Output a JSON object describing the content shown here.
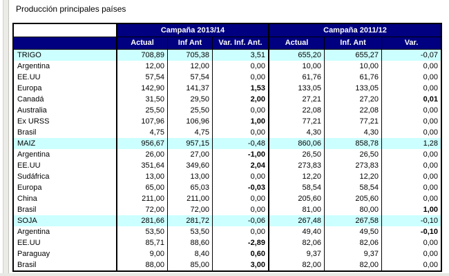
{
  "page": {
    "title": "Producción principales países"
  },
  "colors": {
    "header_bg": "#000080",
    "header_text": "#FFFFFF",
    "commodity_row_bg": "#CCFFFF",
    "table_border": "#000000"
  },
  "table": {
    "corner_label": "",
    "groups": [
      {
        "label": "Campaña 2013/14",
        "columns": [
          "Actual",
          "Inf Ant",
          "Var. Inf. Ant."
        ]
      },
      {
        "label": "Campaña 2011/12",
        "columns": [
          "Actual",
          "Inf. Ant",
          "Var."
        ]
      }
    ],
    "rows": [
      {
        "name": "TRIGO",
        "type": "commodity",
        "values": [
          "708,89",
          "705,38",
          "3,51",
          "655,20",
          "655,27",
          "-0,07"
        ],
        "bold": [
          false,
          false,
          false,
          false,
          false,
          false
        ]
      },
      {
        "name": "Argentina",
        "type": "country",
        "values": [
          "12,00",
          "12,00",
          "0,00",
          "10,00",
          "10,00",
          "0,00"
        ],
        "bold": [
          false,
          false,
          false,
          false,
          false,
          false
        ]
      },
      {
        "name": "EE.UU",
        "type": "country",
        "values": [
          "57,54",
          "57,54",
          "0,00",
          "61,76",
          "61,76",
          "0,00"
        ],
        "bold": [
          false,
          false,
          false,
          false,
          false,
          false
        ]
      },
      {
        "name": "Europa",
        "type": "country",
        "values": [
          "142,90",
          "141,37",
          "1,53",
          "133,05",
          "133,05",
          "0,00"
        ],
        "bold": [
          false,
          false,
          true,
          false,
          false,
          false
        ]
      },
      {
        "name": "Canadá",
        "type": "country",
        "values": [
          "31,50",
          "29,50",
          "2,00",
          "27,21",
          "27,20",
          "0,01"
        ],
        "bold": [
          false,
          false,
          true,
          false,
          false,
          true
        ]
      },
      {
        "name": "Australia",
        "type": "country",
        "values": [
          "25,50",
          "25,50",
          "0,00",
          "22,08",
          "22,08",
          "0,00"
        ],
        "bold": [
          false,
          false,
          false,
          false,
          false,
          false
        ]
      },
      {
        "name": "Ex URSS",
        "type": "country",
        "values": [
          "107,96",
          "106,96",
          "1,00",
          "77,21",
          "77,21",
          "0,00"
        ],
        "bold": [
          false,
          false,
          true,
          false,
          false,
          false
        ]
      },
      {
        "name": "Brasil",
        "type": "country",
        "values": [
          "4,75",
          "4,75",
          "0,00",
          "4,30",
          "4,30",
          "0,00"
        ],
        "bold": [
          false,
          false,
          false,
          false,
          false,
          false
        ]
      },
      {
        "name": "MAIZ",
        "type": "commodity",
        "values": [
          "956,67",
          "957,15",
          "-0,48",
          "860,06",
          "858,78",
          "1,28"
        ],
        "bold": [
          false,
          false,
          false,
          false,
          false,
          false
        ]
      },
      {
        "name": "Argentina",
        "type": "country",
        "values": [
          "26,00",
          "27,00",
          "-1,00",
          "26,50",
          "26,50",
          "0,00"
        ],
        "bold": [
          false,
          false,
          true,
          false,
          false,
          false
        ]
      },
      {
        "name": "EE.UU",
        "type": "country",
        "values": [
          "351,64",
          "349,60",
          "2,04",
          "273,83",
          "273,83",
          "0,00"
        ],
        "bold": [
          false,
          false,
          true,
          false,
          false,
          false
        ]
      },
      {
        "name": "Sudáfrica",
        "type": "country",
        "values": [
          "13,00",
          "13,00",
          "0,00",
          "12,20",
          "12,20",
          "0,00"
        ],
        "bold": [
          false,
          false,
          false,
          false,
          false,
          false
        ]
      },
      {
        "name": "Europa",
        "type": "country",
        "values": [
          "65,00",
          "65,03",
          "-0,03",
          "58,54",
          "58,54",
          "0,00"
        ],
        "bold": [
          false,
          false,
          true,
          false,
          false,
          false
        ]
      },
      {
        "name": "China",
        "type": "country",
        "values": [
          "211,00",
          "211,00",
          "0,00",
          "205,60",
          "205,60",
          "0,00"
        ],
        "bold": [
          false,
          false,
          false,
          false,
          false,
          false
        ]
      },
      {
        "name": "Brasil",
        "type": "country",
        "values": [
          "72,00",
          "72,00",
          "0,00",
          "81,00",
          "80,00",
          "1,00"
        ],
        "bold": [
          false,
          false,
          false,
          false,
          false,
          true
        ]
      },
      {
        "name": "SOJA",
        "type": "commodity",
        "values": [
          "281,66",
          "281,72",
          "-0,06",
          "267,48",
          "267,58",
          "-0,10"
        ],
        "bold": [
          false,
          false,
          false,
          false,
          false,
          false
        ]
      },
      {
        "name": "Argentina",
        "type": "country",
        "values": [
          "53,50",
          "53,50",
          "0,00",
          "49,40",
          "49,50",
          "-0,10"
        ],
        "bold": [
          false,
          false,
          false,
          false,
          false,
          true
        ]
      },
      {
        "name": "EE.UU",
        "type": "country",
        "values": [
          "85,71",
          "88,60",
          "-2,89",
          "82,06",
          "82,06",
          "0,00"
        ],
        "bold": [
          false,
          false,
          true,
          false,
          false,
          false
        ]
      },
      {
        "name": "Paraguay",
        "type": "country",
        "values": [
          "9,00",
          "8,40",
          "0,60",
          "9,37",
          "9,37",
          "0,00"
        ],
        "bold": [
          false,
          false,
          true,
          false,
          false,
          false
        ]
      },
      {
        "name": "Brasil",
        "type": "country",
        "values": [
          "88,00",
          "85,00",
          "3,00",
          "82,00",
          "82,00",
          "0,00"
        ],
        "bold": [
          false,
          false,
          true,
          false,
          false,
          false
        ]
      }
    ]
  }
}
